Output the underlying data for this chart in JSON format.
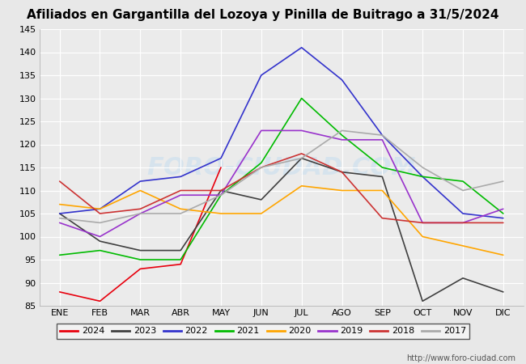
{
  "title": "Afiliados en Gargantilla del Lozoya y Pinilla de Buitrago a 31/5/2024",
  "months": [
    "ENE",
    "FEB",
    "MAR",
    "ABR",
    "MAY",
    "JUN",
    "JUL",
    "AGO",
    "SEP",
    "OCT",
    "NOV",
    "DIC"
  ],
  "ylim": [
    85,
    145
  ],
  "yticks": [
    85,
    90,
    95,
    100,
    105,
    110,
    115,
    120,
    125,
    130,
    135,
    140,
    145
  ],
  "series_order": [
    "2024",
    "2023",
    "2022",
    "2021",
    "2020",
    "2019",
    "2018",
    "2017"
  ],
  "series": {
    "2024": {
      "color": "#e8000d",
      "data": [
        88,
        86,
        93,
        94,
        115,
        null,
        null,
        null,
        null,
        null,
        null,
        null
      ]
    },
    "2023": {
      "color": "#404040",
      "data": [
        105,
        99,
        97,
        97,
        110,
        108,
        117,
        114,
        113,
        86,
        91,
        88
      ]
    },
    "2022": {
      "color": "#3333cc",
      "data": [
        105,
        106,
        112,
        113,
        117,
        135,
        141,
        134,
        122,
        113,
        105,
        104
      ]
    },
    "2021": {
      "color": "#00bb00",
      "data": [
        96,
        97,
        95,
        95,
        109,
        116,
        130,
        122,
        115,
        113,
        112,
        105
      ]
    },
    "2020": {
      "color": "#ffa500",
      "data": [
        107,
        106,
        110,
        106,
        105,
        105,
        111,
        110,
        110,
        100,
        98,
        96
      ]
    },
    "2019": {
      "color": "#9933cc",
      "data": [
        103,
        100,
        105,
        109,
        109,
        123,
        123,
        121,
        121,
        103,
        103,
        106
      ]
    },
    "2018": {
      "color": "#cc3333",
      "data": [
        112,
        105,
        106,
        110,
        110,
        115,
        118,
        114,
        104,
        103,
        103,
        103
      ]
    },
    "2017": {
      "color": "#aaaaaa",
      "data": [
        104,
        103,
        105,
        105,
        109,
        115,
        117,
        123,
        122,
        115,
        110,
        112
      ]
    }
  },
  "watermark": "FORO-CIUDAD.COM",
  "footer": "http://www.foro-ciudad.com",
  "bg_color": "#e8e8e8",
  "plot_bg": "#ebebeb",
  "grid_color": "#ffffff",
  "title_bg": "#5aade6",
  "title_fontsize": 11,
  "tick_fontsize": 8,
  "legend_fontsize": 8
}
